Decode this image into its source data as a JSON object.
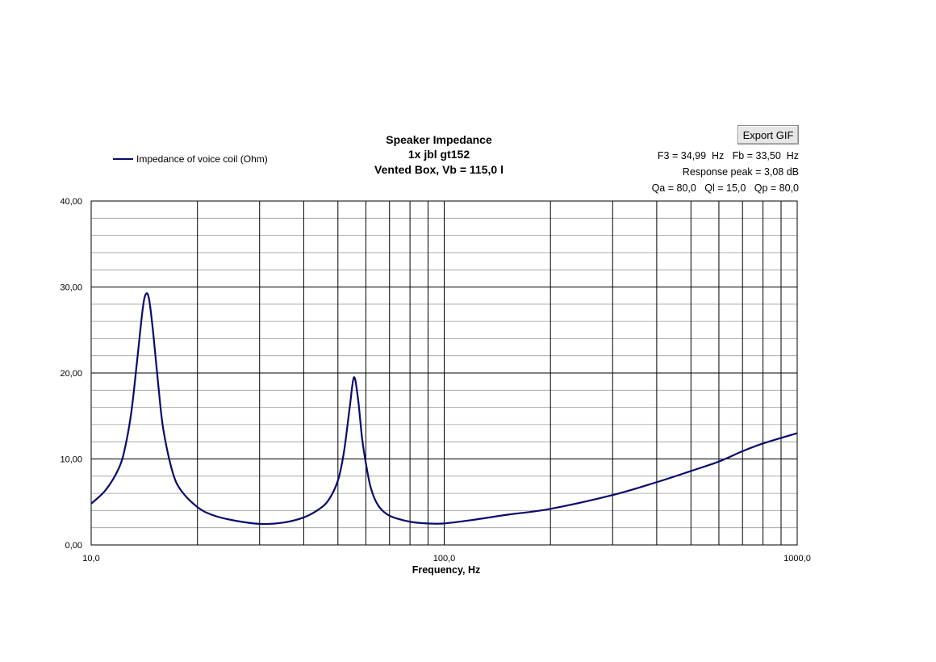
{
  "header": {
    "export_button_label": "Export GIF",
    "info_line1": "F3 = 34,99  Hz   Fb = 33,50  Hz",
    "info_line2": "Response peak = 3,08 dB",
    "info_line3": "Qa = 80,0   Ql = 15,0   Qp = 80,0"
  },
  "chart_data": {
    "type": "line",
    "title": "Speaker Impedance",
    "subtitle": [
      "1x jbl gt152",
      "Vented Box, Vb = 115,0 l"
    ],
    "xlabel": "Frequency,  Hz",
    "ylabel": "",
    "xscale": "log",
    "xlim": [
      10,
      1000
    ],
    "ylim": [
      0,
      40
    ],
    "x_tick_labels": [
      "10,0",
      "100,0",
      "1000,0"
    ],
    "y_tick_labels": [
      "0,00",
      "10,00",
      "20,00",
      "30,00",
      "40,00"
    ],
    "y_ticks": [
      0,
      10,
      20,
      30,
      40
    ],
    "grid": true,
    "legend_position": "top-left",
    "colors": {
      "series": "#0a0a6e",
      "grid_major": "#000000",
      "grid_minor": "#9a9a9a"
    },
    "series": [
      {
        "name": "Impedance of voice coil (Ohm)",
        "x": [
          10,
          11,
          12,
          12.5,
          13,
          13.5,
          14,
          14.3,
          14.6,
          15,
          15.5,
          16,
          17,
          18,
          20,
          22,
          25,
          30,
          35,
          40,
          44,
          47,
          50,
          52,
          54,
          55.5,
          57,
          58.5,
          60,
          62,
          65,
          70,
          80,
          90,
          100,
          120,
          150,
          200,
          300,
          400,
          500,
          600,
          700,
          800,
          1000
        ],
        "values": [
          4.8,
          6.4,
          9.0,
          11.5,
          15.5,
          21.5,
          27.5,
          29.2,
          28.5,
          24.5,
          18.5,
          13.5,
          8.5,
          6.3,
          4.4,
          3.5,
          2.9,
          2.45,
          2.6,
          3.2,
          4.1,
          5.2,
          7.5,
          10.8,
          16.0,
          19.5,
          17.0,
          12.5,
          9.5,
          6.6,
          4.6,
          3.4,
          2.7,
          2.5,
          2.5,
          2.9,
          3.5,
          4.2,
          5.8,
          7.3,
          8.6,
          9.7,
          10.9,
          11.8,
          13.0
        ]
      }
    ]
  }
}
